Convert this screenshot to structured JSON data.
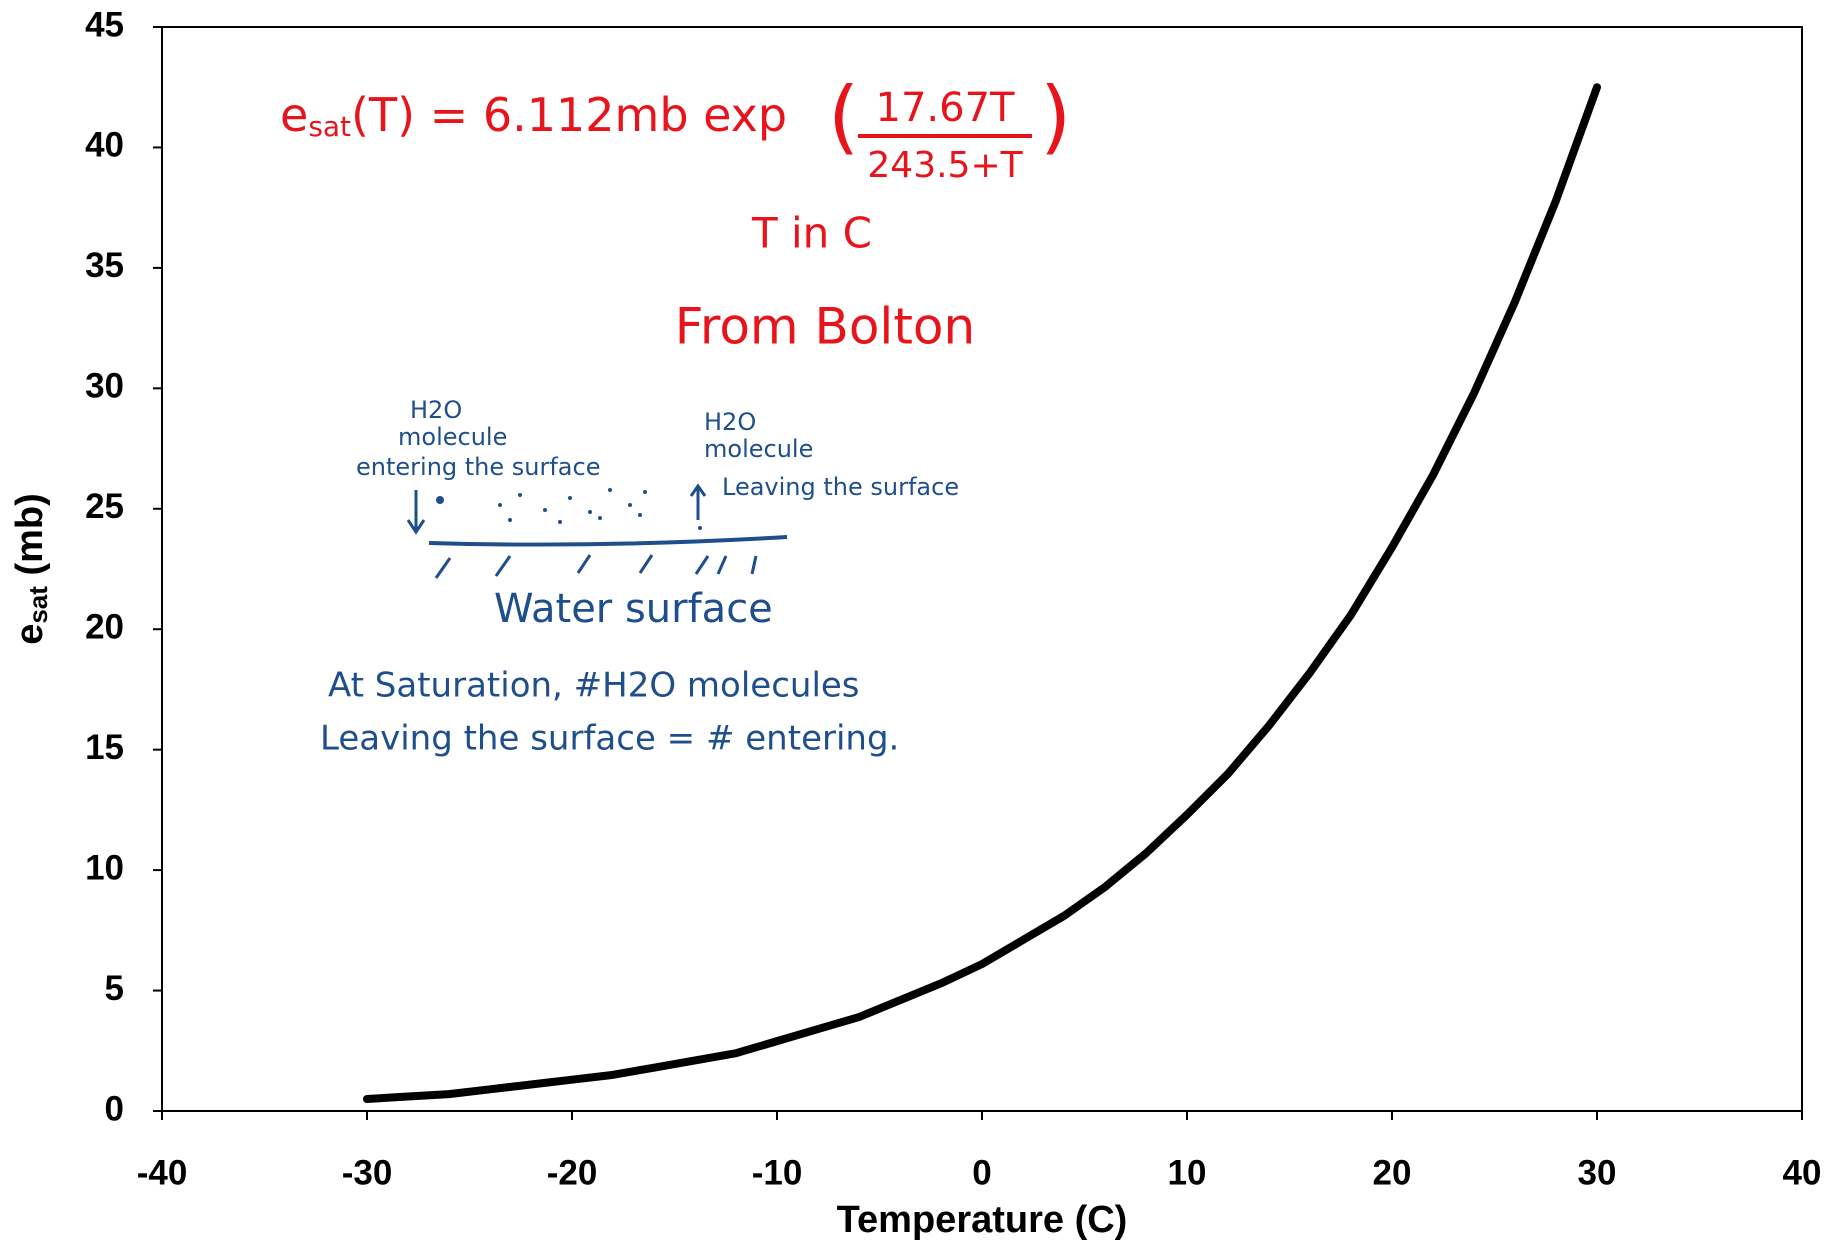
{
  "chart_data": {
    "type": "line",
    "xlabel": "Temperature (C)",
    "ylabel": [
      "e",
      "sat",
      " (mb)"
    ],
    "x": [
      -30,
      -28,
      -26,
      -24,
      -22,
      -20,
      -18,
      -16,
      -14,
      -12,
      -10,
      -8,
      -6,
      -4,
      -2,
      0,
      2,
      4,
      6,
      8,
      10,
      12,
      14,
      16,
      18,
      20,
      22,
      24,
      26,
      28,
      30
    ],
    "series": [
      {
        "color": "#000000",
        "values": [
          0.5,
          0.6,
          0.7,
          0.9,
          1.1,
          1.3,
          1.5,
          1.8,
          2.1,
          2.4,
          2.9,
          3.4,
          3.9,
          4.6,
          5.3,
          6.1,
          7.1,
          8.1,
          9.3,
          10.7,
          12.3,
          14.0,
          16.0,
          18.2,
          20.6,
          23.4,
          26.4,
          29.8,
          33.6,
          37.8,
          42.5
        ]
      }
    ],
    "xlim": [
      -40,
      40
    ],
    "xticks": [
      -40,
      -30,
      -20,
      -10,
      0,
      10,
      20,
      30,
      40
    ],
    "ylim": [
      0,
      45
    ],
    "yticks": [
      0,
      5,
      10,
      15,
      20,
      25,
      30,
      35,
      40,
      45
    ],
    "grid": false,
    "annotations": {
      "formula": {
        "lhs": [
          "e",
          "sat",
          "(T) = 6.112mb exp"
        ],
        "numerator": "17.67T",
        "denominator": "243.5+T",
        "color": "#e8141c"
      },
      "units": {
        "text": "T in C",
        "color": "#e8141c"
      },
      "source": {
        "text": "From Bolton",
        "color": "#e8141c"
      },
      "diagram": {
        "color": "#1f4e8c",
        "entering": [
          "H2O",
          "molecule",
          "entering the surface"
        ],
        "leaving": [
          "H2O",
          "molecule",
          "Leaving the surface"
        ],
        "surface": "Water surface",
        "note": [
          "At Saturation, #H2O molecules",
          "Leaving the surface = # entering."
        ]
      }
    }
  }
}
